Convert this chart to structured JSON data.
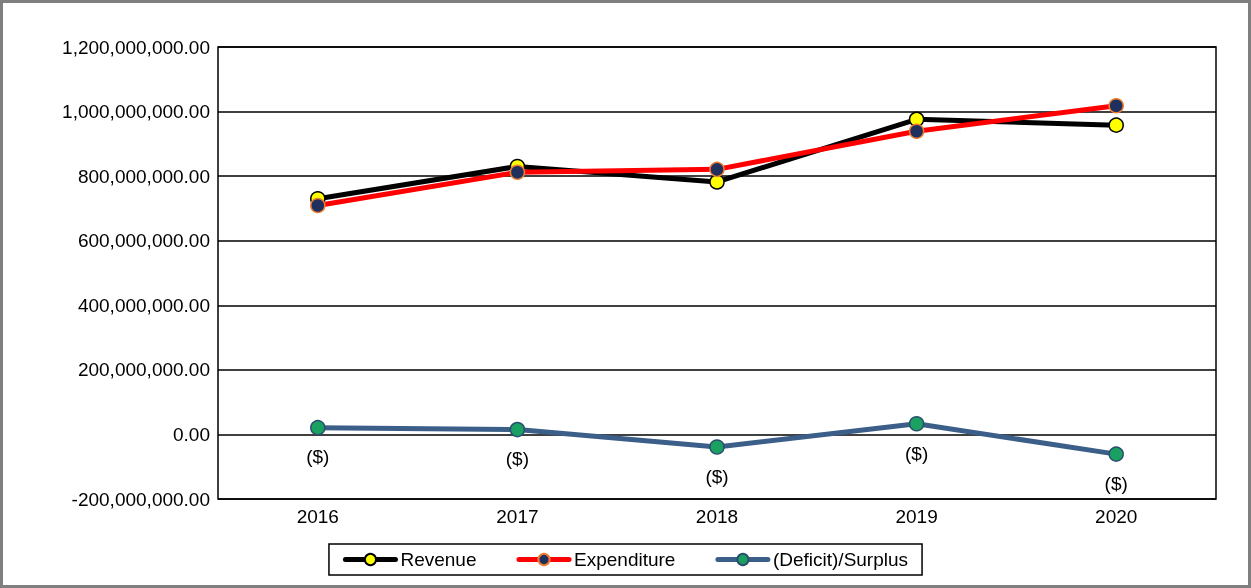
{
  "chart_data": {
    "type": "line",
    "categories": [
      "2016",
      "2017",
      "2018",
      "2019",
      "2020"
    ],
    "series": [
      {
        "name": "Revenue",
        "color": "#000000",
        "values": [
          730000000,
          830000000,
          782000000,
          976000000,
          958000000
        ]
      },
      {
        "name": "Expenditure",
        "color": "#ff0000",
        "values": [
          709000000,
          812000000,
          821000000,
          939000000,
          1018000000
        ]
      },
      {
        "name": "(Deficit)/Surplus",
        "color": "#3b5f88",
        "values": [
          21000000,
          15000000,
          -39000000,
          33000000,
          -61000000
        ],
        "value_labels": [
          "($)",
          "($)",
          "($)",
          "($)",
          "($)"
        ]
      }
    ],
    "ylim": [
      -200000000,
      1200000000
    ],
    "yticks": [
      {
        "value": -200000000,
        "label": "-200,000,000.00"
      },
      {
        "value": 0,
        "label": "0.00"
      },
      {
        "value": 200000000,
        "label": "200,000,000.00"
      },
      {
        "value": 400000000,
        "label": "400,000,000.00"
      },
      {
        "value": 600000000,
        "label": "600,000,000.00"
      },
      {
        "value": 800000000,
        "label": "800,000,000.00"
      },
      {
        "value": 1000000000,
        "label": "1,000,000,000.00"
      },
      {
        "value": 1200000000,
        "label": "1,200,000,000.00"
      }
    ],
    "grid": "y",
    "legend": "bottom",
    "marker": "circle",
    "line_style": "solid"
  }
}
